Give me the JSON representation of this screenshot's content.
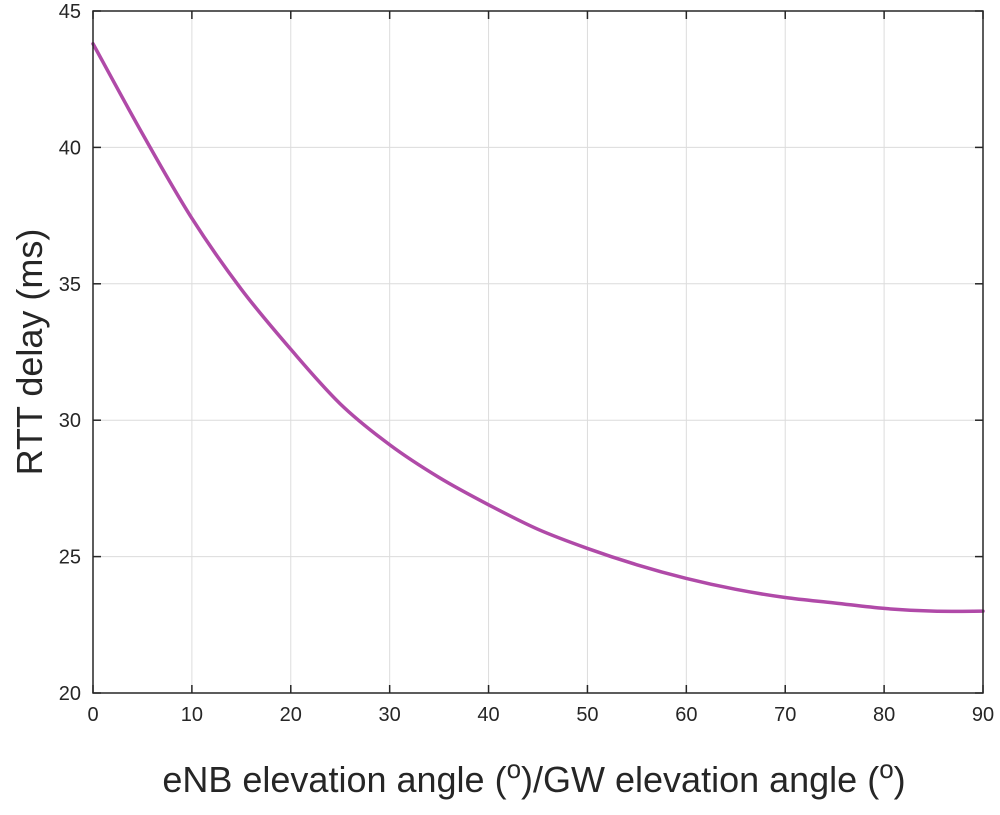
{
  "chart_data": {
    "type": "line",
    "title": "",
    "xlabel": "eNB elevation angle (o)/GW elevation angle (o)",
    "xlabel_parts": {
      "text1": "eNB elevation angle (",
      "sup1": "o",
      "text2": ")/GW elevation angle (",
      "sup2": "o",
      "text3": ")"
    },
    "ylabel": "RTT delay (ms)",
    "xlim": [
      0,
      90
    ],
    "ylim": [
      20,
      45
    ],
    "xticks": [
      0,
      10,
      20,
      30,
      40,
      50,
      60,
      70,
      80,
      90
    ],
    "yticks": [
      20,
      25,
      30,
      35,
      40,
      45
    ],
    "grid": true,
    "series": [
      {
        "name": "RTT delay",
        "color": "#b04aa8",
        "x": [
          0,
          5,
          10,
          15,
          20,
          25,
          30,
          35,
          40,
          45,
          50,
          55,
          60,
          65,
          70,
          75,
          80,
          85,
          90
        ],
        "y": [
          43.8,
          40.5,
          37.4,
          34.8,
          32.6,
          30.6,
          29.1,
          27.9,
          26.9,
          26.0,
          25.3,
          24.7,
          24.2,
          23.8,
          23.5,
          23.3,
          23.1,
          23.0,
          23.0
        ]
      }
    ]
  }
}
